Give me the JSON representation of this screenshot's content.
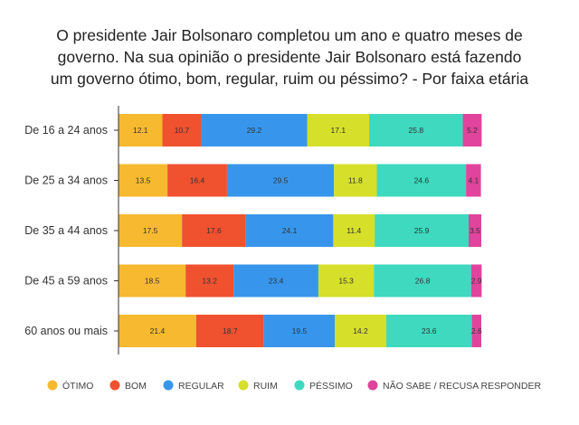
{
  "chart_data": {
    "type": "bar",
    "orientation": "horizontal",
    "stacked": true,
    "title_lines": [
      "O presidente Jair Bolsonaro completou um ano e quatro meses de",
      "governo. Na sua opinião o presidente Jair Bolsonaro está fazendo",
      "um governo ótimo, bom, regular, ruim ou péssimo? - Por faixa etária"
    ],
    "categories": [
      "De 16 a 24 anos",
      "De 25 a 34 anos",
      "De 35 a 44 anos",
      "De 45 a 59 anos",
      "60 anos ou mais"
    ],
    "series": [
      {
        "name": "ÓTIMO",
        "color": "#F6B92F",
        "values": [
          12.1,
          13.5,
          17.5,
          18.5,
          21.4
        ],
        "labels": [
          "12.1",
          "13.5",
          "17.5",
          "18.5",
          "21.4"
        ]
      },
      {
        "name": "BOM",
        "color": "#F0512F",
        "values": [
          10.7,
          16.4,
          17.6,
          13.2,
          18.7
        ],
        "labels": [
          "10.7",
          "16.4",
          "17.6",
          "13.2",
          "18.7"
        ]
      },
      {
        "name": "REGULAR",
        "color": "#3796EC",
        "values": [
          29.2,
          29.5,
          24.1,
          23.4,
          19.5
        ],
        "labels": [
          "29.2",
          "29.5",
          "24.1",
          "23.4",
          "19.5"
        ]
      },
      {
        "name": "RUIM",
        "color": "#D6DF2A",
        "values": [
          17.1,
          11.8,
          11.4,
          15.3,
          14.2
        ],
        "labels": [
          "17.1",
          "11.8",
          "11.4",
          "15.3",
          "14.2"
        ]
      },
      {
        "name": "PÉSSIMO",
        "color": "#3ED9BF",
        "values": [
          25.8,
          24.6,
          25.9,
          26.8,
          23.6
        ],
        "labels": [
          "25.8",
          "24.6",
          "25.9",
          "26.8",
          "23.6"
        ]
      },
      {
        "name": "NÃO SABE / RECUSA RESPONDER",
        "color": "#E0449C",
        "values": [
          5.2,
          4.1,
          3.5,
          2.9,
          2.6
        ],
        "labels": [
          "5.2",
          "4.1",
          "3.5",
          "2.9",
          "2.6"
        ]
      }
    ],
    "xlim": [
      0,
      100
    ],
    "grid": false,
    "legend_position": "bottom"
  }
}
